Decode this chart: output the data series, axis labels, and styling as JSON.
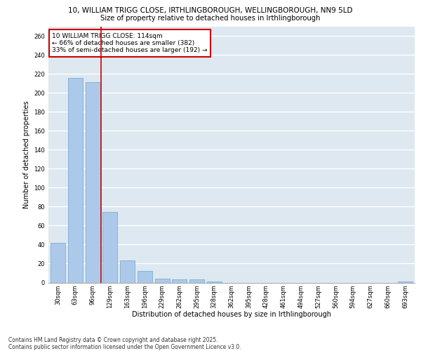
{
  "title_line1": "10, WILLIAM TRIGG CLOSE, IRTHLINGBOROUGH, WELLINGBOROUGH, NN9 5LD",
  "title_line2": "Size of property relative to detached houses in Irthlingborough",
  "xlabel": "Distribution of detached houses by size in Irthlingborough",
  "ylabel": "Number of detached properties",
  "categories": [
    "30sqm",
    "63sqm",
    "96sqm",
    "129sqm",
    "163sqm",
    "196sqm",
    "229sqm",
    "262sqm",
    "295sqm",
    "328sqm",
    "362sqm",
    "395sqm",
    "428sqm",
    "461sqm",
    "494sqm",
    "527sqm",
    "560sqm",
    "594sqm",
    "627sqm",
    "660sqm",
    "693sqm"
  ],
  "values": [
    42,
    216,
    211,
    74,
    23,
    12,
    4,
    3,
    3,
    1,
    0,
    0,
    0,
    0,
    0,
    0,
    0,
    0,
    0,
    0,
    1
  ],
  "bar_color": "#adc9e9",
  "bar_edge_color": "#7aaed4",
  "vline_x": 2.5,
  "vline_color": "#cc0000",
  "annotation_text": "10 WILLIAM TRIGG CLOSE: 114sqm\n← 66% of detached houses are smaller (382)\n33% of semi-detached houses are larger (192) →",
  "annotation_box_color": "#cc0000",
  "ylim": [
    0,
    270
  ],
  "yticks": [
    0,
    20,
    40,
    60,
    80,
    100,
    120,
    140,
    160,
    180,
    200,
    220,
    240,
    260
  ],
  "background_color": "#dde8f0",
  "grid_color": "#ffffff",
  "footnote": "Contains HM Land Registry data © Crown copyright and database right 2025.\nContains public sector information licensed under the Open Government Licence v3.0.",
  "title_fontsize": 7.5,
  "subtitle_fontsize": 7.2,
  "axis_label_fontsize": 7.0,
  "tick_fontsize": 6.0,
  "annot_fontsize": 6.5,
  "footnote_fontsize": 5.5
}
